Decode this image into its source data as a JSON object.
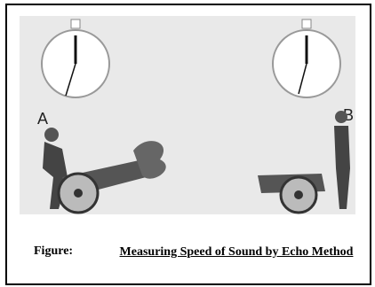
{
  "figure": {
    "label_a": "A",
    "label_b": "B"
  },
  "caption": {
    "label": "Figure:",
    "text": "Measuring Speed of Sound by Echo Method"
  }
}
